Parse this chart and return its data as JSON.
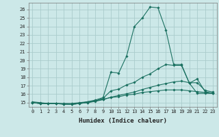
{
  "title": "",
  "xlabel": "Humidex (Indice chaleur)",
  "background_color": "#cce8e8",
  "grid_color": "#aacccc",
  "line_color": "#1a7060",
  "xlim": [
    -0.5,
    23.5
  ],
  "ylim": [
    14.5,
    26.8
  ],
  "yticks": [
    15,
    16,
    17,
    18,
    19,
    20,
    21,
    22,
    23,
    24,
    25,
    26
  ],
  "xticks": [
    0,
    1,
    2,
    3,
    4,
    5,
    6,
    7,
    8,
    9,
    10,
    11,
    12,
    13,
    14,
    15,
    16,
    17,
    18,
    19,
    20,
    21,
    22,
    23
  ],
  "lines": [
    {
      "x": [
        0,
        1,
        2,
        3,
        4,
        5,
        6,
        7,
        8,
        9,
        10,
        11,
        12,
        13,
        14,
        15,
        16,
        17,
        18,
        19,
        20,
        21,
        22,
        23
      ],
      "y": [
        15.0,
        14.9,
        14.9,
        14.9,
        14.85,
        14.8,
        14.9,
        15.1,
        15.3,
        15.6,
        18.6,
        18.5,
        20.5,
        24.0,
        25.0,
        26.3,
        26.2,
        23.6,
        19.5,
        19.5,
        17.3,
        17.8,
        16.3,
        16.1
      ]
    },
    {
      "x": [
        0,
        1,
        2,
        3,
        4,
        5,
        6,
        7,
        8,
        9,
        10,
        11,
        12,
        13,
        14,
        15,
        16,
        17,
        18,
        19,
        20,
        21,
        22,
        23
      ],
      "y": [
        15.0,
        14.9,
        14.9,
        14.9,
        14.85,
        14.8,
        14.9,
        15.0,
        15.2,
        15.5,
        16.4,
        16.6,
        17.1,
        17.4,
        18.0,
        18.4,
        19.0,
        19.5,
        19.4,
        19.4,
        17.3,
        16.1,
        16.1,
        16.1
      ]
    },
    {
      "x": [
        0,
        1,
        2,
        3,
        4,
        5,
        6,
        7,
        8,
        9,
        10,
        11,
        12,
        13,
        14,
        15,
        16,
        17,
        18,
        19,
        20,
        21,
        22,
        23
      ],
      "y": [
        15.0,
        14.9,
        14.9,
        14.9,
        14.8,
        14.8,
        14.9,
        15.0,
        15.15,
        15.35,
        15.65,
        15.85,
        16.05,
        16.25,
        16.55,
        16.8,
        17.05,
        17.25,
        17.45,
        17.55,
        17.35,
        17.35,
        16.45,
        16.25
      ]
    },
    {
      "x": [
        0,
        1,
        2,
        3,
        4,
        5,
        6,
        7,
        8,
        9,
        10,
        11,
        12,
        13,
        14,
        15,
        16,
        17,
        18,
        19,
        20,
        21,
        22,
        23
      ],
      "y": [
        15.1,
        15.0,
        14.9,
        14.9,
        14.9,
        14.9,
        15.0,
        15.1,
        15.2,
        15.4,
        15.6,
        15.7,
        15.9,
        16.0,
        16.2,
        16.3,
        16.4,
        16.5,
        16.5,
        16.5,
        16.4,
        16.3,
        16.2,
        16.1
      ]
    }
  ]
}
